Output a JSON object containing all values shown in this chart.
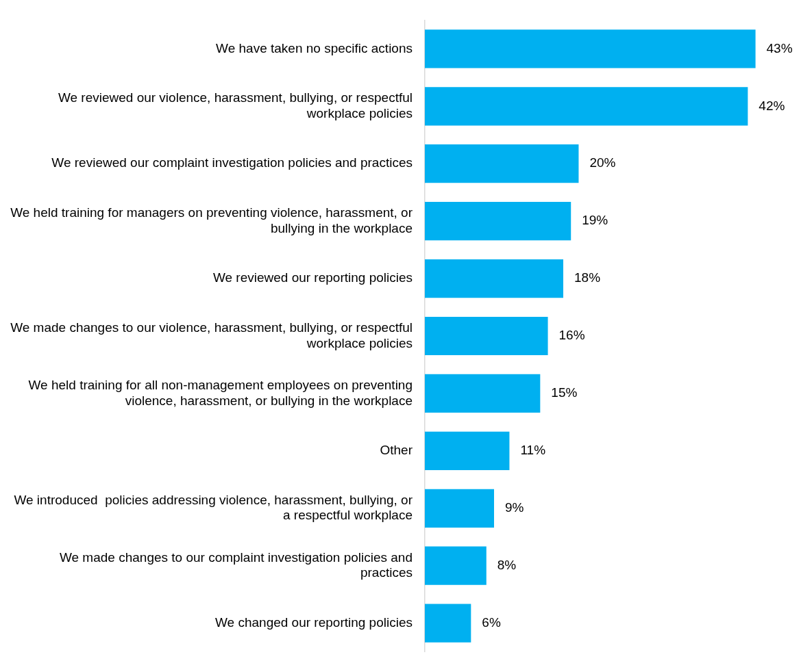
{
  "chart_data": {
    "type": "bar",
    "orientation": "horizontal",
    "categories": [
      "We have taken no specific actions",
      "We reviewed our violence, harassment, bullying, or respectful workplace policies",
      "We reviewed our complaint investigation policies and practices",
      "We held training for managers on preventing violence, harassment, or bullying in the workplace",
      "We reviewed our reporting policies",
      "We made changes to our violence, harassment, bullying, or respectful workplace policies",
      "We held training for all non-management employees on preventing violence, harassment, or bullying in the workplace",
      "Other",
      "We introduced  policies addressing violence, harassment, bullying, or a respectful workplace",
      "We made changes to our complaint investigation policies and practices",
      "We changed our reporting policies"
    ],
    "values": [
      43,
      42,
      20,
      19,
      18,
      16,
      15,
      11,
      9,
      8,
      6
    ],
    "value_labels": [
      "43%",
      "42%",
      "20%",
      "19%",
      "18%",
      "16%",
      "15%",
      "11%",
      "9%",
      "8%",
      "6%"
    ],
    "color": "#00b0f0",
    "tick_labels": "y"
  }
}
